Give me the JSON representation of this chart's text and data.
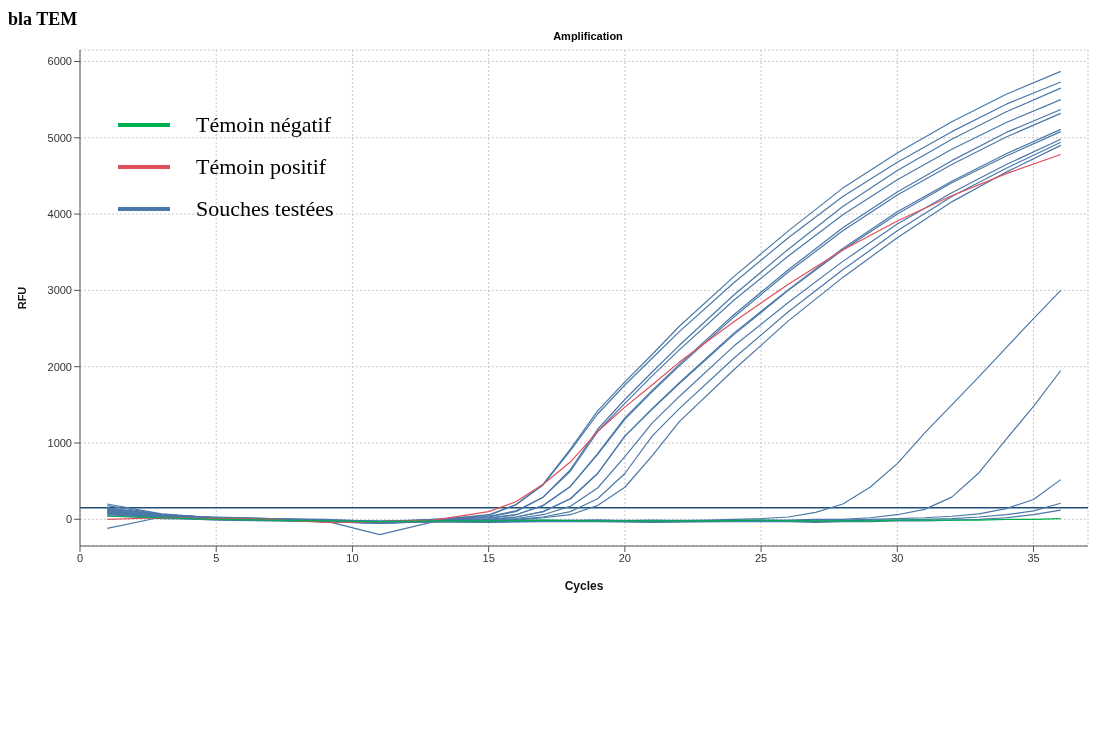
{
  "chart_data": {
    "type": "line",
    "title": "Amplification",
    "xlabel": "Cycles",
    "ylabel": "RFU",
    "annotations": [
      "bla TEM"
    ],
    "xlim": [
      0,
      37
    ],
    "xticks": [
      0,
      5,
      10,
      15,
      20,
      25,
      30,
      35
    ],
    "ylim": [
      -350,
      6150
    ],
    "yticks": [
      0,
      1000,
      2000,
      3000,
      4000,
      5000,
      6000
    ],
    "grid": true,
    "legend": "top left",
    "marker": "none",
    "line_style": "solid",
    "ref_lines": [
      {
        "axis": "y",
        "value": 150,
        "color": "#1f4e79"
      }
    ],
    "series": [
      {
        "name": "Témoin négatif",
        "color": "#00b050",
        "x": [
          1,
          3,
          5,
          7,
          9,
          11,
          13,
          15,
          17,
          19,
          21,
          23,
          25,
          26,
          27,
          28,
          29,
          30,
          31,
          32,
          33,
          34,
          35,
          36
        ],
        "values": [
          40,
          20,
          0,
          -10,
          -20,
          -30,
          -20,
          -20,
          -10,
          -20,
          -20,
          -20,
          -10,
          -20,
          -20,
          -20,
          -20,
          -10,
          -10,
          -10,
          -10,
          0,
          0,
          10
        ]
      },
      {
        "name": "Témoin positif",
        "color": "#e0505a",
        "x": [
          1,
          3,
          5,
          7,
          9,
          11,
          13,
          15,
          16,
          17,
          18,
          19,
          20,
          21,
          22,
          24,
          26,
          28,
          30,
          32,
          34,
          36
        ],
        "values": [
          0,
          20,
          10,
          0,
          -40,
          -30,
          -10,
          100,
          230,
          460,
          750,
          1150,
          1470,
          1760,
          2060,
          2590,
          3080,
          3530,
          3910,
          4240,
          4530,
          4780
        ]
      },
      {
        "name": "Souches testées",
        "color": "#4a78a8",
        "x": [
          1,
          3,
          5,
          7,
          9,
          11,
          13,
          15,
          16,
          17,
          18,
          19,
          20,
          21,
          22,
          24,
          26,
          28,
          30,
          32,
          34,
          36
        ],
        "values": [
          120,
          50,
          10,
          0,
          -20,
          -30,
          -10,
          60,
          190,
          460,
          920,
          1420,
          1800,
          2160,
          2530,
          3180,
          3780,
          4340,
          4800,
          5210,
          5570,
          5870
        ]
      },
      {
        "color": "#4a78a8",
        "x": [
          1,
          3,
          5,
          7,
          9,
          11,
          13,
          15,
          16,
          17,
          18,
          19,
          20,
          21,
          22,
          24,
          26,
          28,
          30,
          32,
          34,
          36
        ],
        "values": [
          90,
          40,
          20,
          0,
          -20,
          -40,
          0,
          50,
          190,
          450,
          900,
          1380,
          1760,
          2110,
          2460,
          3100,
          3690,
          4230,
          4680,
          5080,
          5440,
          5730
        ]
      },
      {
        "color": "#4a78a8",
        "x": [
          1,
          3,
          5,
          7,
          9,
          11,
          13,
          15,
          16,
          17,
          18,
          19,
          20,
          21,
          22,
          24,
          26,
          28,
          30,
          32,
          34,
          36
        ],
        "values": [
          150,
          60,
          20,
          10,
          -10,
          -40,
          -20,
          40,
          110,
          290,
          650,
          1180,
          1570,
          1930,
          2280,
          2940,
          3540,
          4100,
          4570,
          4980,
          5340,
          5650
        ]
      },
      {
        "color": "#4a78a8",
        "x": [
          1,
          3,
          5,
          7,
          9,
          11,
          13,
          15,
          16,
          17,
          18,
          19,
          20,
          21,
          22,
          24,
          26,
          28,
          30,
          32,
          34,
          36
        ],
        "values": [
          80,
          30,
          0,
          -10,
          -30,
          -40,
          -20,
          30,
          100,
          290,
          630,
          1150,
          1520,
          1880,
          2220,
          2870,
          3450,
          3990,
          4450,
          4850,
          5200,
          5500
        ]
      },
      {
        "color": "#4a78a8",
        "x": [
          1,
          3,
          5,
          7,
          9,
          11,
          13,
          15,
          16,
          17,
          18,
          19,
          20,
          21,
          22,
          24,
          26,
          28,
          30,
          32,
          34,
          36
        ],
        "values": [
          110,
          50,
          30,
          10,
          0,
          -30,
          0,
          20,
          60,
          180,
          430,
          860,
          1330,
          1690,
          2030,
          2680,
          3270,
          3820,
          4290,
          4700,
          5070,
          5370
        ]
      },
      {
        "color": "#4a78a8",
        "x": [
          1,
          3,
          5,
          7,
          9,
          11,
          13,
          15,
          16,
          17,
          18,
          19,
          20,
          21,
          22,
          24,
          26,
          28,
          30,
          32,
          34,
          36
        ],
        "values": [
          60,
          20,
          -10,
          -20,
          -30,
          -50,
          -30,
          10,
          60,
          180,
          430,
          850,
          1310,
          1670,
          2010,
          2650,
          3240,
          3780,
          4250,
          4650,
          5010,
          5320
        ]
      },
      {
        "color": "#4a78a8",
        "x": [
          1,
          3,
          5,
          7,
          9,
          11,
          13,
          15,
          16,
          17,
          18,
          19,
          20,
          21,
          22,
          24,
          26,
          28,
          30,
          32,
          34,
          36
        ],
        "values": [
          130,
          60,
          20,
          0,
          -20,
          -30,
          -10,
          0,
          30,
          100,
          270,
          600,
          1090,
          1450,
          1790,
          2440,
          3010,
          3550,
          4030,
          4430,
          4790,
          5110
        ]
      },
      {
        "color": "#4a78a8",
        "x": [
          1,
          3,
          5,
          7,
          9,
          11,
          13,
          15,
          16,
          17,
          18,
          19,
          20,
          21,
          22,
          24,
          26,
          28,
          30,
          32,
          34,
          36
        ],
        "values": [
          100,
          40,
          10,
          0,
          -20,
          -40,
          -20,
          -10,
          30,
          100,
          270,
          600,
          1090,
          1440,
          1780,
          2420,
          3000,
          3530,
          4000,
          4410,
          4760,
          5080
        ]
      },
      {
        "color": "#4a78a8",
        "x": [
          1,
          3,
          5,
          7,
          9,
          11,
          13,
          15,
          16,
          17,
          18,
          19,
          20,
          21,
          22,
          24,
          26,
          28,
          30,
          32,
          34,
          36
        ],
        "values": [
          70,
          30,
          10,
          0,
          -10,
          -20,
          -10,
          -20,
          10,
          60,
          170,
          410,
          820,
          1260,
          1610,
          2270,
          2840,
          3380,
          3870,
          4280,
          4650,
          4980
        ]
      },
      {
        "color": "#4a78a8",
        "x": [
          1,
          3,
          5,
          7,
          9,
          11,
          13,
          15,
          16,
          17,
          18,
          19,
          20,
          21,
          22,
          24,
          26,
          28,
          30,
          32,
          34,
          36
        ],
        "values": [
          140,
          60,
          20,
          10,
          -20,
          -40,
          -20,
          -30,
          0,
          30,
          100,
          270,
          600,
          1090,
          1450,
          2110,
          2720,
          3270,
          3780,
          4230,
          4600,
          4940
        ]
      },
      {
        "color": "#4a78a8",
        "x": [
          1,
          3,
          5,
          7,
          9,
          11,
          13,
          15,
          16,
          17,
          18,
          19,
          20,
          21,
          22,
          24,
          26,
          28,
          30,
          32,
          34,
          36
        ],
        "values": [
          50,
          10,
          0,
          -10,
          -30,
          -50,
          -30,
          -40,
          -10,
          20,
          60,
          180,
          420,
          830,
          1280,
          1960,
          2600,
          3170,
          3690,
          4160,
          4550,
          4900
        ]
      },
      {
        "color": "#4a78a8",
        "x": [
          1,
          3,
          5,
          7,
          9,
          11,
          13,
          15,
          17,
          19,
          21,
          23,
          25,
          26,
          27,
          28,
          29,
          30,
          31,
          32,
          33,
          34,
          35,
          36
        ],
        "values": [
          180,
          60,
          20,
          0,
          -20,
          -40,
          -20,
          -10,
          -20,
          -10,
          -20,
          -10,
          10,
          30,
          90,
          200,
          420,
          730,
          1130,
          1500,
          1870,
          2250,
          2630,
          3000
        ]
      },
      {
        "color": "#4a78a8",
        "x": [
          1,
          3,
          5,
          7,
          9,
          11,
          13,
          15,
          17,
          19,
          21,
          23,
          25,
          26,
          27,
          28,
          29,
          30,
          31,
          32,
          33,
          34,
          35,
          36
        ],
        "values": [
          100,
          40,
          10,
          -10,
          -20,
          -200,
          -30,
          -20,
          -10,
          -20,
          -10,
          -20,
          -10,
          -10,
          0,
          0,
          20,
          60,
          130,
          290,
          610,
          1050,
          1480,
          1950
        ]
      },
      {
        "color": "#4a78a8",
        "x": [
          1,
          3,
          5,
          7,
          9,
          11,
          13,
          15,
          17,
          19,
          21,
          23,
          25,
          26,
          27,
          28,
          29,
          30,
          31,
          32,
          33,
          34,
          35,
          36
        ],
        "values": [
          -120,
          30,
          20,
          0,
          -30,
          -50,
          -20,
          -30,
          -20,
          -10,
          -30,
          -20,
          -20,
          -20,
          -10,
          -10,
          0,
          10,
          20,
          40,
          70,
          140,
          260,
          520
        ]
      },
      {
        "color": "#4a78a8",
        "x": [
          1,
          3,
          5,
          7,
          9,
          11,
          13,
          15,
          17,
          19,
          21,
          23,
          25,
          26,
          27,
          28,
          29,
          30,
          31,
          32,
          33,
          34,
          35,
          36
        ],
        "values": [
          200,
          70,
          20,
          0,
          -20,
          -40,
          -20,
          -30,
          -20,
          -20,
          -30,
          -30,
          -20,
          -20,
          -30,
          -20,
          -10,
          -10,
          0,
          10,
          30,
          60,
          110,
          210
        ]
      },
      {
        "color": "#4a78a8",
        "x": [
          1,
          3,
          5,
          7,
          9,
          11,
          13,
          15,
          17,
          19,
          21,
          23,
          25,
          26,
          27,
          28,
          29,
          30,
          31,
          32,
          33,
          34,
          35,
          36
        ],
        "values": [
          90,
          30,
          0,
          -10,
          -30,
          -50,
          -30,
          -40,
          -30,
          -30,
          -40,
          -30,
          -30,
          -30,
          -40,
          -30,
          -30,
          -20,
          -20,
          -10,
          0,
          20,
          60,
          120
        ]
      }
    ]
  }
}
